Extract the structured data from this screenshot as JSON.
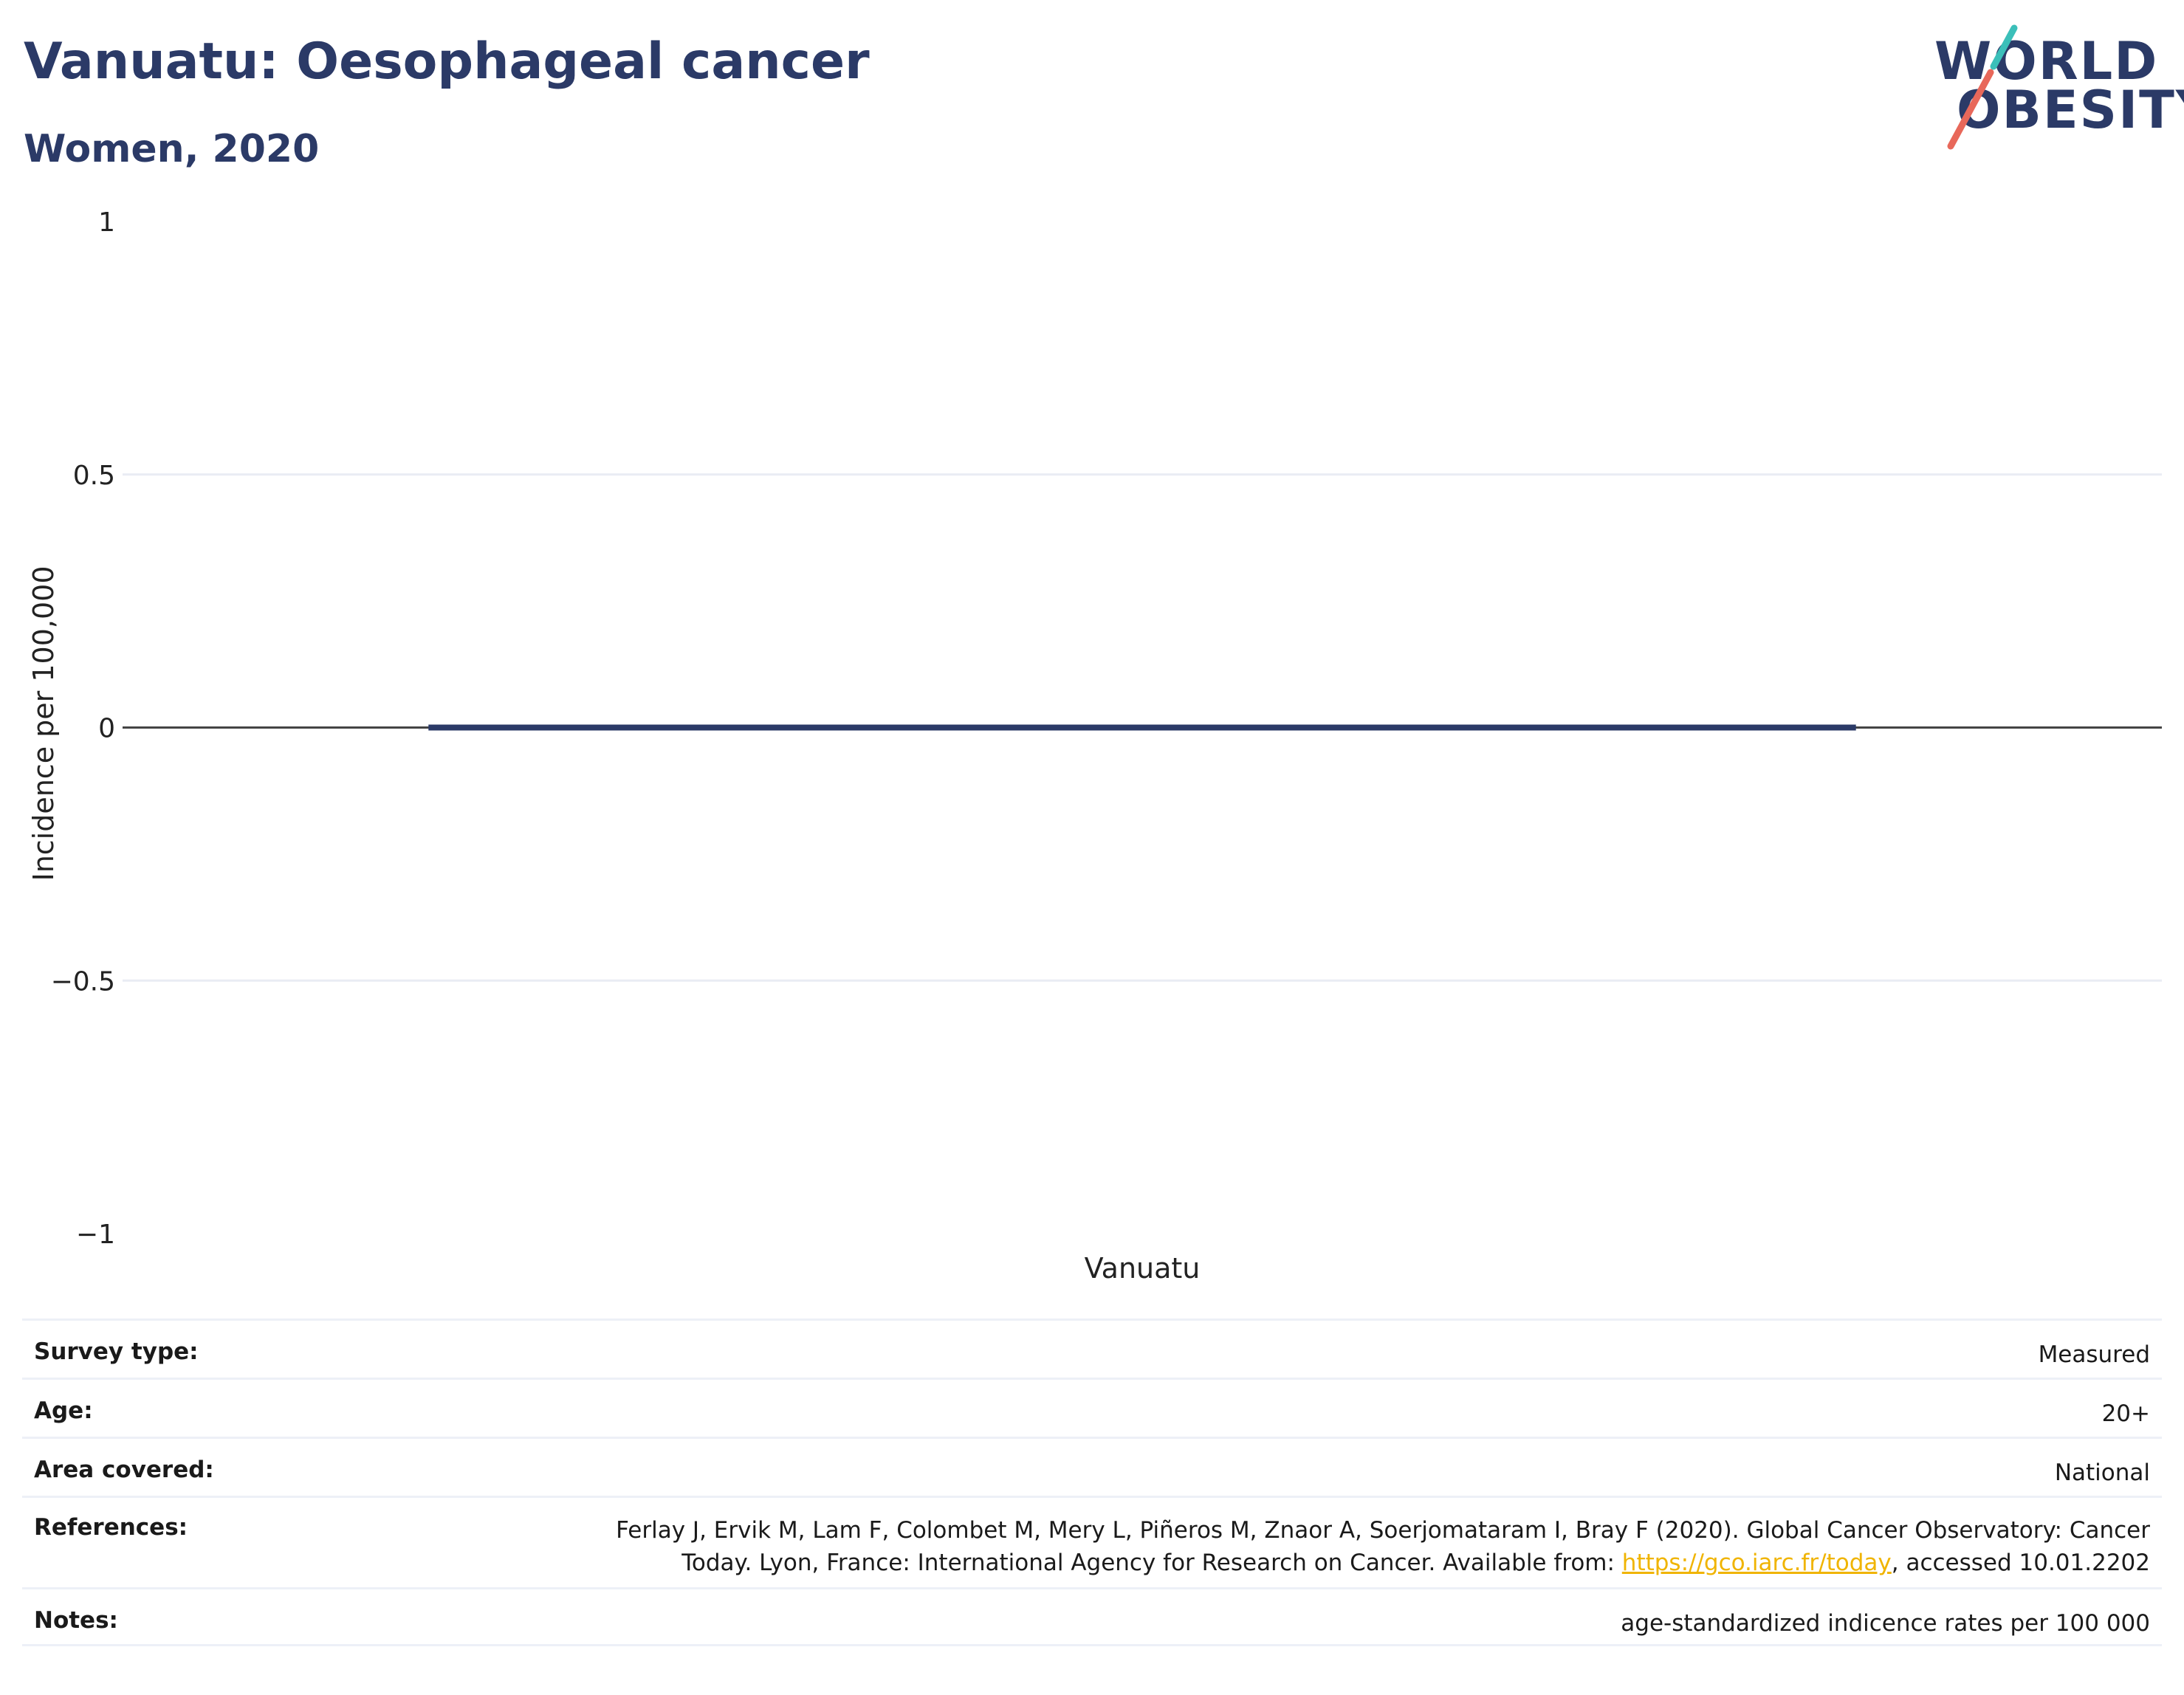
{
  "header": {
    "title": "Vanuatu: Oesophageal cancer",
    "subtitle": "Women, 2020"
  },
  "logo": {
    "line1": "WORLD",
    "line2": "OBESITY",
    "accent_teal": "#3bbfb9",
    "accent_coral": "#e8685a"
  },
  "colors": {
    "bar": "#2b3a67",
    "title": "#2b3a67",
    "grid": "#e9ecf4",
    "zeroline": "#444444",
    "link": "#f0b400"
  },
  "chart_data": {
    "type": "bar",
    "categories": [
      "Vanuatu"
    ],
    "values": [
      0
    ],
    "ylabel": "Incidence per 100,000",
    "ylim": [
      -1,
      1
    ],
    "yticks": [
      1,
      0.5,
      0,
      -0.5,
      -1
    ],
    "ytick_labels": [
      "1",
      "0.5",
      "0",
      "−0.5",
      "−1"
    ],
    "grid": true,
    "legend": false
  },
  "info": {
    "survey_type": {
      "label": "Survey type:",
      "value": "Measured"
    },
    "age": {
      "label": "Age:",
      "value": "20+"
    },
    "area": {
      "label": "Area covered:",
      "value": "National"
    },
    "references": {
      "label": "References:",
      "line1": "Ferlay J, Ervik M, Lam F, Colombet M, Mery L, Piñeros M, Znaor A, Soerjomataram I, Bray F (2020). Global Cancer Observatory: Cancer",
      "line2_pre": "Today. Lyon, France: International Agency for Research on Cancer. Available from: ",
      "link": "https://gco.iarc.fr/today",
      "line2_post": ", accessed 10.01.2202"
    },
    "notes": {
      "label": "Notes:",
      "value": "age-standardized indicence rates per 100 000"
    }
  }
}
